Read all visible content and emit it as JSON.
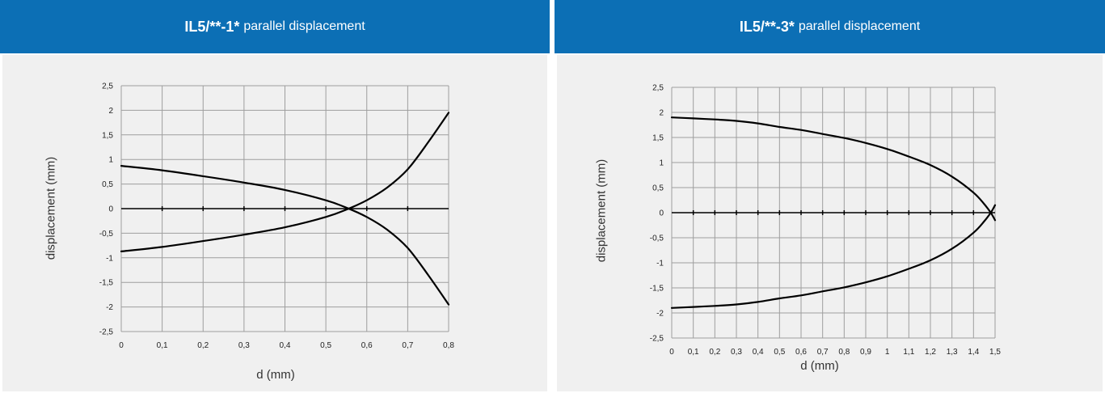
{
  "panels": [
    {
      "header_model": "IL5/**-1*",
      "header_rest": "parallel displacement"
    },
    {
      "header_model": "IL5/**-3*",
      "header_rest": "parallel displacement"
    }
  ],
  "colors": {
    "header_bg": "#0c6fb5",
    "plot_bg": "#f0f0f0",
    "grid": "#9e9e9e",
    "curve": "#000000"
  },
  "chart_data": [
    {
      "type": "line",
      "title": "IL5/**-1* parallel displacement",
      "xlabel": "d (mm)",
      "ylabel": "displacement (mm)",
      "xlim": [
        0,
        0.8
      ],
      "ylim": [
        -2.5,
        2.5
      ],
      "x_ticks": [
        "0",
        "0,1",
        "0,2",
        "0,3",
        "0,4",
        "0,5",
        "0,6",
        "0,7",
        "0,8"
      ],
      "y_ticks": [
        "2,5",
        "2",
        "1,5",
        "1",
        "0,5",
        "0",
        "-0,5",
        "-1",
        "-1,5",
        "-2",
        "-2,5"
      ],
      "grid": true,
      "series": [
        {
          "x": [
            0,
            0.1,
            0.2,
            0.3,
            0.4,
            0.5,
            0.55,
            0.6,
            0.65,
            0.7,
            0.75,
            0.8
          ],
          "y": [
            0.87,
            0.78,
            0.66,
            0.53,
            0.38,
            0.17,
            0.02,
            -0.17,
            -0.43,
            -0.8,
            -1.35,
            -1.95
          ]
        },
        {
          "x": [
            0,
            0.1,
            0.2,
            0.3,
            0.4,
            0.5,
            0.55,
            0.6,
            0.65,
            0.7,
            0.75,
            0.8
          ],
          "y": [
            -0.87,
            -0.78,
            -0.66,
            -0.53,
            -0.38,
            -0.17,
            -0.02,
            0.17,
            0.43,
            0.8,
            1.35,
            1.95
          ]
        }
      ]
    },
    {
      "type": "line",
      "title": "IL5/**-3* parallel displacement",
      "xlabel": "d (mm)",
      "ylabel": "displacement (mm)",
      "xlim": [
        0,
        1.5
      ],
      "ylim": [
        -2.5,
        2.5
      ],
      "x_ticks": [
        "0",
        "0,1",
        "0,2",
        "0,3",
        "0,4",
        "0,5",
        "0,6",
        "0,7",
        "0,8",
        "0,9",
        "1",
        "1,1",
        "1,2",
        "1,3",
        "1,4",
        "1,5"
      ],
      "y_ticks": [
        "2,5",
        "2",
        "1,5",
        "1",
        "0,5",
        "0",
        "-0,5",
        "-1",
        "-1,5",
        "-2",
        "-2,5"
      ],
      "grid": true,
      "series": [
        {
          "x": [
            0,
            0.1,
            0.2,
            0.3,
            0.4,
            0.5,
            0.6,
            0.7,
            0.8,
            0.9,
            1.0,
            1.1,
            1.2,
            1.3,
            1.4,
            1.45,
            1.48,
            1.5
          ],
          "y": [
            1.9,
            1.88,
            1.86,
            1.83,
            1.78,
            1.71,
            1.65,
            1.57,
            1.49,
            1.39,
            1.27,
            1.12,
            0.95,
            0.72,
            0.4,
            0.17,
            0.0,
            -0.15
          ]
        },
        {
          "x": [
            0,
            0.1,
            0.2,
            0.3,
            0.4,
            0.5,
            0.6,
            0.7,
            0.8,
            0.9,
            1.0,
            1.1,
            1.2,
            1.3,
            1.4,
            1.45,
            1.48,
            1.5
          ],
          "y": [
            -1.9,
            -1.88,
            -1.86,
            -1.83,
            -1.78,
            -1.71,
            -1.65,
            -1.57,
            -1.49,
            -1.39,
            -1.27,
            -1.12,
            -0.95,
            -0.72,
            -0.4,
            -0.17,
            0.0,
            0.15
          ]
        }
      ]
    }
  ]
}
